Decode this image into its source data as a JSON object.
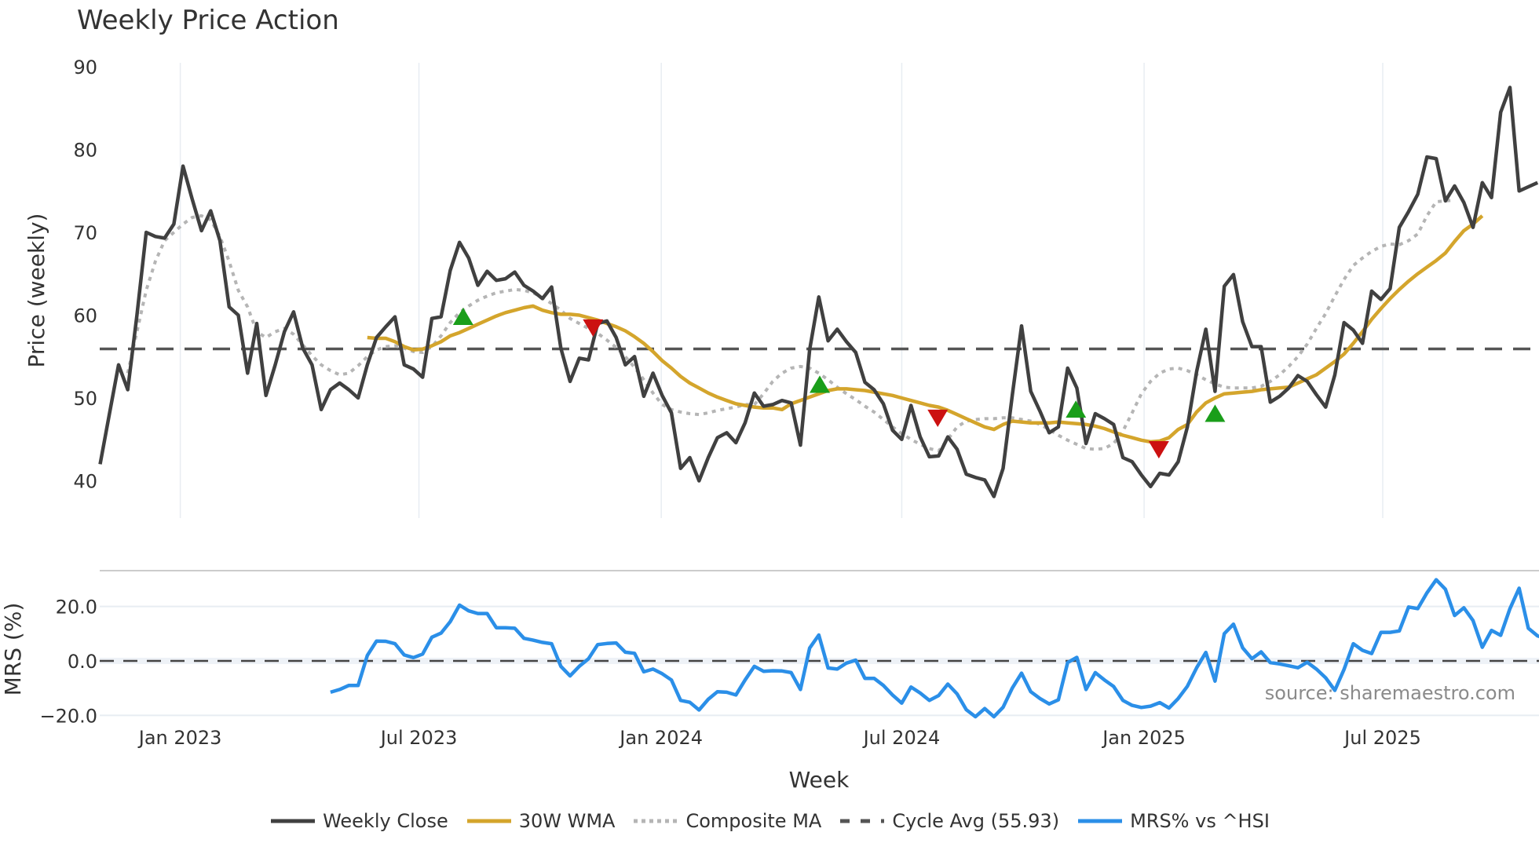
{
  "chart_data": {
    "type": "line",
    "title": "Weekly Price Action",
    "xlabel": "Week",
    "panels": [
      {
        "name": "price",
        "ylabel": "Price (weekly)",
        "ylim": [
          35,
          91
        ],
        "yticks": [
          40,
          50,
          60,
          70,
          80,
          90
        ]
      },
      {
        "name": "mrs",
        "ylabel": "MRS (%)",
        "ylim": [
          -22,
          32
        ],
        "yticks": [
          -20.0,
          0.0,
          20.0
        ],
        "ytick_labels": [
          "−20.0",
          "0.0",
          "20.0"
        ]
      }
    ],
    "x_ticks": [
      {
        "label": "Jan 2023",
        "week": 8.7
      },
      {
        "label": "Jul 2023",
        "week": 34.6
      },
      {
        "label": "Jan 2024",
        "week": 60.9
      },
      {
        "label": "Jul 2024",
        "week": 87.0
      },
      {
        "label": "Jan 2025",
        "week": 113.3
      },
      {
        "label": "Jul 2025",
        "week": 139.2
      }
    ],
    "week_count": 157,
    "series": [
      {
        "name": "Weekly Close",
        "color": "#404040",
        "style": "solid",
        "panel": "price",
        "start_week": 0,
        "values": [
          42,
          48,
          54,
          51,
          60,
          70,
          69.5,
          69.3,
          71,
          78,
          74,
          70.2,
          72.6,
          69,
          61,
          60,
          53,
          59,
          50.3,
          54,
          58,
          60.4,
          56,
          54,
          48.6,
          51,
          51.8,
          51,
          50,
          54,
          57.3,
          58.6,
          59.8,
          54,
          53.5,
          52.5,
          59.6,
          59.8,
          65.4,
          68.8,
          66.9,
          63.6,
          65.3,
          64.2,
          64.4,
          65.2,
          63.6,
          62.9,
          62,
          63.4,
          56,
          52,
          54.8,
          54.6,
          59,
          59.3,
          57.3,
          54,
          55,
          50.2,
          53,
          50.3,
          48.2,
          41.5,
          42.8,
          40,
          42.8,
          45.2,
          45.8,
          44.6,
          47,
          50.6,
          49,
          49.2,
          49.7,
          49.4,
          44.3,
          55.8,
          62.2,
          56.9,
          58.3,
          56.8,
          55.5,
          51.9,
          51,
          49.3,
          46.1,
          45,
          49.1,
          45.3,
          42.9,
          43,
          45.3,
          43.8,
          40.8,
          40.4,
          40.1,
          38.1,
          41.5,
          50.4,
          58.7,
          50.8,
          48.4,
          45.8,
          46.5,
          53.6,
          51.2,
          44.5,
          48.1,
          47.5,
          46.8,
          42.8,
          42.3,
          40.7,
          39.3,
          40.9,
          40.7,
          42.3,
          46.5,
          53.2,
          58.3,
          50.8,
          63.5,
          64.9,
          59.2,
          56.2,
          56.2,
          49.5,
          50.2,
          51.2,
          52.7,
          52,
          50.4,
          48.9,
          52.8,
          59.1,
          58.2,
          56.6,
          62.9,
          61.9,
          63.2,
          70.6,
          72.5,
          74.6,
          79.1,
          78.9,
          73.8,
          75.6,
          73.6,
          70.6,
          76,
          74.2,
          84.5,
          87.5,
          75,
          75.5,
          76
        ]
      },
      {
        "name": "30W WMA",
        "color": "#D4A52C",
        "style": "solid",
        "panel": "price",
        "start_week": 29,
        "values": [
          57.3,
          57.2,
          57.2,
          56.8,
          56.2,
          55.8,
          55.9,
          56.3,
          56.8,
          57.5,
          57.9,
          58.4,
          58.9,
          59.4,
          59.9,
          60.3,
          60.6,
          60.9,
          61.1,
          60.6,
          60.3,
          60.1,
          60.1,
          60,
          59.7,
          59.4,
          59,
          58.6,
          58.1,
          57.4,
          56.6,
          55.6,
          54.5,
          53.6,
          52.6,
          51.8,
          51.2,
          50.6,
          50.1,
          49.7,
          49.3,
          49.1,
          48.9,
          48.8,
          48.8,
          48.6,
          49.3,
          49.7,
          50.1,
          50.5,
          50.9,
          51.1,
          51.1,
          51,
          50.9,
          50.7,
          50.5,
          50.3,
          50,
          49.7,
          49.4,
          49.1,
          48.9,
          48.5,
          48,
          47.5,
          47,
          46.5,
          46.2,
          46.8,
          47.2,
          47.1,
          47,
          47,
          47,
          47.1,
          47,
          46.9,
          46.8,
          46.6,
          46.3,
          45.9,
          45.5,
          45.2,
          44.9,
          44.7,
          44.8,
          45.2,
          46.2,
          46.8,
          48.3,
          49.4,
          50,
          50.5,
          50.6,
          50.7,
          50.8,
          51,
          51.1,
          51.2,
          51.3,
          51.8,
          52.3,
          52.8,
          53.6,
          54.4,
          55.3,
          56.6,
          58,
          59.5,
          60.8,
          62,
          63.1,
          64.1,
          65,
          65.8,
          66.6,
          67.5,
          68.9,
          70.2,
          71,
          72
        ]
      },
      {
        "name": "Composite MA",
        "color": "#B5B5B5",
        "style": "dotted",
        "panel": "price",
        "start_week": 3,
        "values": [
          53,
          58,
          63,
          66.5,
          69,
          70,
          71,
          71.8,
          72,
          71.5,
          69.5,
          66.5,
          63,
          61,
          58,
          57.3,
          58,
          58.4,
          57.7,
          56.4,
          55.1,
          54,
          53.3,
          52.8,
          53,
          53.9,
          55,
          55.8,
          56.2,
          56.3,
          56,
          55.6,
          55.5,
          56.2,
          57.5,
          59.1,
          60.3,
          61.1,
          61.8,
          62.3,
          62.7,
          62.9,
          63.1,
          63,
          62.7,
          62.1,
          61.4,
          60.6,
          59.6,
          59,
          58.4,
          57.8,
          57,
          56.1,
          55,
          53.7,
          52.2,
          50.6,
          49.2,
          48.6,
          48.3,
          48.1,
          48,
          48.2,
          48.5,
          48.7,
          48.9,
          49.2,
          49.2,
          50.5,
          52,
          53,
          53.6,
          53.8,
          53.6,
          53,
          52.2,
          51.3,
          50.5,
          49.8,
          49,
          48.3,
          47.4,
          46.5,
          45.7,
          45,
          44.4,
          43.9,
          43.6,
          45,
          46.5,
          47.2,
          47.4,
          47.5,
          47.5,
          47.6,
          47.6,
          47.4,
          47.2,
          46.8,
          46.2,
          45.5,
          44.9,
          44.4,
          43.9,
          43.8,
          43.9,
          44.5,
          46,
          48.2,
          50.5,
          52,
          53,
          53.5,
          53.6,
          53.3,
          52.8,
          52.2,
          51.7,
          51.3,
          51.2,
          51.2,
          51.2,
          51.4,
          52,
          52.8,
          53.8,
          55,
          56.5,
          58.4,
          60.2,
          62.3,
          64.3,
          66,
          66.9,
          67.7,
          68.3,
          68.6,
          68.5,
          69,
          69.8,
          72,
          73.7,
          73.8,
          73.9
        ]
      },
      {
        "name": "Cycle Avg (55.93)",
        "color": "#555555",
        "style": "dashed",
        "panel": "price",
        "value": 55.93
      },
      {
        "name": "MRS% vs ^HSI",
        "color": "#2B8FE8",
        "style": "solid",
        "panel": "mrs",
        "start_week": 25,
        "values": [
          -11.5,
          -10.5,
          -9,
          -9,
          2,
          7.3,
          7.2,
          6.3,
          2.2,
          1.2,
          2.5,
          8.7,
          10.2,
          14.4,
          20.5,
          18.4,
          17.4,
          17.4,
          12.2,
          12.2,
          12,
          8.3,
          7.6,
          6.8,
          6.3,
          -2,
          -5.5,
          -2,
          0.8,
          6,
          6.4,
          6.6,
          3.2,
          2.8,
          -4,
          -3,
          -4.7,
          -7,
          -14.5,
          -15.2,
          -18,
          -14.1,
          -11.3,
          -11.5,
          -12.5,
          -7,
          -2,
          -3.8,
          -3.6,
          -3.7,
          -4.3,
          -10.5,
          4.7,
          9.5,
          -2.6,
          -3,
          -0.8,
          0.3,
          -6.4,
          -6.4,
          -9,
          -12.5,
          -15.5,
          -9.6,
          -11.8,
          -14.5,
          -12.7,
          -8.5,
          -12.1,
          -17.9,
          -20.5,
          -17.5,
          -20.5,
          -17,
          -9.9,
          -4.5,
          -11.3,
          -13.8,
          -15.8,
          -14.3,
          -0.6,
          1.3,
          -10.5,
          -4.3,
          -7,
          -9.4,
          -14.5,
          -16.3,
          -17.1,
          -16.6,
          -15.3,
          -17.3,
          -13.8,
          -9.3,
          -2.5,
          3.1,
          -7.4,
          10,
          13.5,
          4.8,
          0.8,
          3.3,
          -0.6,
          -1.1,
          -1.8,
          -2.5,
          -0.5,
          -3,
          -6.2,
          -10.8,
          -3.1,
          6.3,
          3.9,
          2.7,
          10.5,
          10.5,
          11,
          19.8,
          19.2,
          25,
          29.8,
          26.3,
          16.7,
          19.5,
          14.8,
          5,
          11.2,
          9.4,
          19.2,
          26.7,
          12,
          9.2,
          8.1
        ]
      }
    ],
    "markers": [
      {
        "type": "buy",
        "shape": "triangle-up",
        "color": "#1A9E1A",
        "week": 39.4,
        "value": 59.8
      },
      {
        "type": "sell",
        "shape": "triangle-down",
        "color": "#CC1111",
        "week": 53.5,
        "value": 58.5
      },
      {
        "type": "buy",
        "shape": "triangle-up",
        "color": "#1A9E1A",
        "week": 78.1,
        "value": 51.6
      },
      {
        "type": "sell",
        "shape": "triangle-down",
        "color": "#CC1111",
        "week": 90.9,
        "value": 47.6
      },
      {
        "type": "buy",
        "shape": "triangle-up",
        "color": "#1A9E1A",
        "week": 105.9,
        "value": 48.6
      },
      {
        "type": "sell",
        "shape": "triangle-down",
        "color": "#CC1111",
        "week": 114.9,
        "value": 43.8
      },
      {
        "type": "buy",
        "shape": "triangle-up",
        "color": "#1A9E1A",
        "week": 121.0,
        "value": 48.1
      }
    ],
    "grid": true,
    "legend_position": "bottom"
  },
  "header": {
    "title": "Weekly Price Action"
  },
  "axes": {
    "xlabel": "Week",
    "price_ylabel": "Price (weekly)",
    "mrs_ylabel": "MRS (%)"
  },
  "annotation": {
    "source": "source: sharemaestro.com"
  },
  "legend": {
    "items": [
      {
        "label": "Weekly Close",
        "color": "#404040",
        "style": "solid"
      },
      {
        "label": "30W WMA",
        "color": "#D4A52C",
        "style": "solid"
      },
      {
        "label": "Composite MA",
        "color": "#B5B5B5",
        "style": "dotted"
      },
      {
        "label": "Cycle Avg (55.93)",
        "color": "#555555",
        "style": "dashed"
      },
      {
        "label": "MRS% vs ^HSI",
        "color": "#2B8FE8",
        "style": "solid"
      }
    ]
  }
}
